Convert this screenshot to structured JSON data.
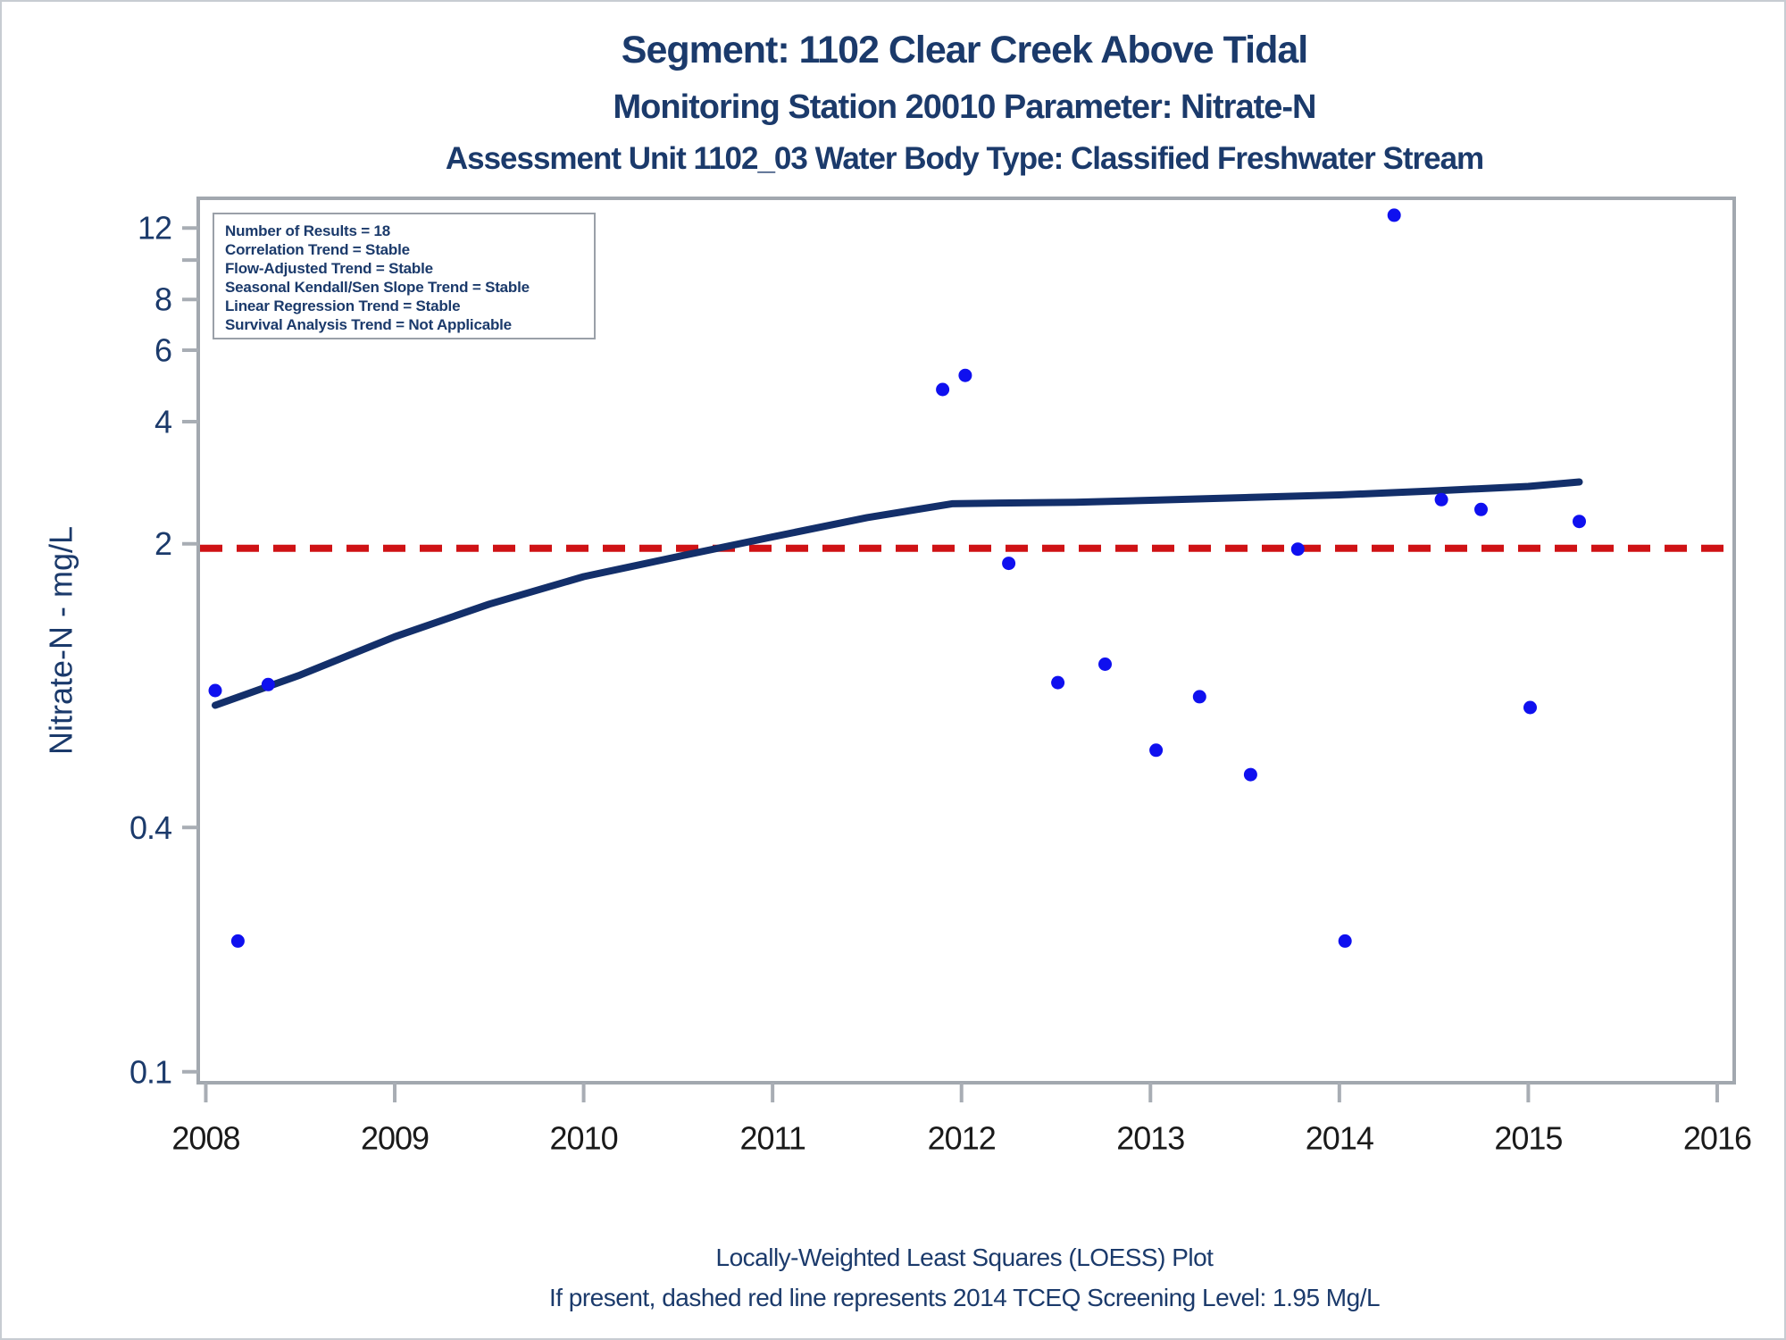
{
  "page": {
    "title_line1": "Segment: 1102  Clear Creek Above Tidal",
    "title_line2": "Monitoring Station 20010 Parameter: Nitrate-N",
    "title_line3": "Assessment Unit 1102_03   Water Body Type: Classified Freshwater Stream",
    "footer_line1": "Locally-Weighted Least Squares (LOESS) Plot",
    "footer_line2": "If present, dashed red line represents 2014 TCEQ Screening Level: 1.95 Mg/L"
  },
  "stats_box": {
    "line1": "Number of Results = 18",
    "line2": "Correlation Trend = Stable",
    "line3": "Flow-Adjusted Trend = Stable",
    "line4": "Seasonal Kendall/Sen Slope Trend = Stable",
    "line5": "Linear Regression Trend = Stable",
    "line6": "Survival Analysis Trend = Not Applicable"
  },
  "colors": {
    "title_text": "#1b3a6b",
    "axis_frame": "#a2a8af",
    "tick": "#a8adb4",
    "x_tick_label": "#1a1a1a",
    "y_tick_label": "#1b3a6b",
    "point": "#0f10ef",
    "loess_line": "#132f6a",
    "screening_line": "#cf1215",
    "stats_text": "#1b3a6b",
    "stats_border": "#9aa0a8"
  },
  "chart_data": {
    "type": "scatter",
    "title": "Segment: 1102  Clear Creek Above Tidal",
    "subtitle": "Monitoring Station 20010 Parameter: Nitrate-N",
    "grid": false,
    "x_axis": {
      "label": "",
      "range": [
        2007.96,
        2016.09
      ],
      "ticks": [
        2008,
        2009,
        2010,
        2011,
        2012,
        2013,
        2014,
        2015,
        2016
      ]
    },
    "y_axis": {
      "label": "Nitrate-N - mg/L",
      "scale": "log",
      "range": [
        0.094,
        14.2
      ],
      "ticks": [
        {
          "value": 12,
          "label": "12"
        },
        {
          "value": 10,
          "label": ""
        },
        {
          "value": 8,
          "label": "8"
        },
        {
          "value": 6,
          "label": "6"
        },
        {
          "value": 4,
          "label": "4"
        },
        {
          "value": 2,
          "label": "2"
        },
        {
          "value": 0.4,
          "label": "0.4"
        },
        {
          "value": 0.1,
          "label": "0.1"
        }
      ]
    },
    "series": [
      {
        "name": "Nitrate-N results",
        "type": "scatter",
        "marker": "circle",
        "points": [
          [
            2008.05,
            0.87
          ],
          [
            2008.17,
            0.21
          ],
          [
            2008.33,
            0.9
          ],
          [
            2011.9,
            4.8
          ],
          [
            2012.02,
            5.2
          ],
          [
            2012.25,
            1.79
          ],
          [
            2012.51,
            0.91
          ],
          [
            2012.76,
            1.01
          ],
          [
            2013.03,
            0.62
          ],
          [
            2013.26,
            0.84
          ],
          [
            2013.53,
            0.54
          ],
          [
            2013.78,
            1.94
          ],
          [
            2014.03,
            0.21
          ],
          [
            2014.29,
            12.9
          ],
          [
            2014.54,
            2.57
          ],
          [
            2014.75,
            2.43
          ],
          [
            2015.01,
            0.79
          ],
          [
            2015.27,
            2.27
          ]
        ]
      },
      {
        "name": "LOESS trend line",
        "type": "line",
        "points": [
          [
            2008.05,
            0.8
          ],
          [
            2008.5,
            0.95
          ],
          [
            2009.0,
            1.18
          ],
          [
            2009.5,
            1.42
          ],
          [
            2010.0,
            1.66
          ],
          [
            2010.5,
            1.86
          ],
          [
            2011.0,
            2.08
          ],
          [
            2011.5,
            2.32
          ],
          [
            2011.95,
            2.51
          ],
          [
            2012.2,
            2.52
          ],
          [
            2012.6,
            2.53
          ],
          [
            2013.0,
            2.56
          ],
          [
            2013.5,
            2.6
          ],
          [
            2014.0,
            2.64
          ],
          [
            2014.5,
            2.7
          ],
          [
            2015.0,
            2.77
          ],
          [
            2015.27,
            2.84
          ]
        ]
      },
      {
        "name": "2014 TCEQ Screening Level",
        "type": "reference_line",
        "style": "dashed",
        "value": 1.95
      }
    ]
  }
}
